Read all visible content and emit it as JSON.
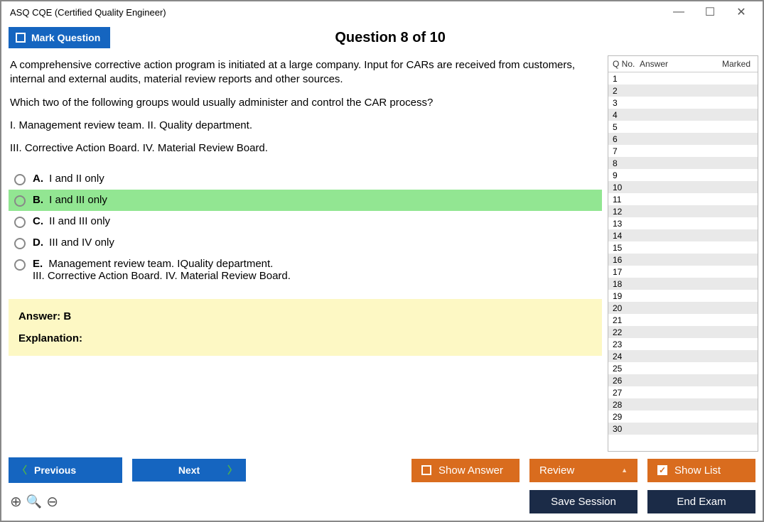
{
  "window": {
    "title": "ASQ CQE (Certified Quality Engineer)"
  },
  "header": {
    "mark_label": "Mark Question",
    "question_title": "Question 8 of 10"
  },
  "question": {
    "paragraphs": [
      "A comprehensive corrective action program is initiated at a large company. Input for CARs are received from customers, internal and external audits, material review reports and other sources.",
      "Which two of the following groups would usually administer and control the CAR process?",
      "I. Management review team. II. Quality department.",
      "III. Corrective Action Board. IV. Material Review Board."
    ]
  },
  "options": [
    {
      "letter": "A.",
      "text": "I and II only",
      "correct": false
    },
    {
      "letter": "B.",
      "text": "I and III only",
      "correct": true
    },
    {
      "letter": "C.",
      "text": "II and III only",
      "correct": false
    },
    {
      "letter": "D.",
      "text": "III and IV only",
      "correct": false
    },
    {
      "letter": "E.",
      "text": "Management review team. IQuality department.\nIII. Corrective Action Board. IV. Material Review Board.",
      "correct": false
    }
  ],
  "answer_panel": {
    "answer_line": "Answer: B",
    "explanation_label": "Explanation:"
  },
  "sidebar": {
    "headers": {
      "qno": "Q No.",
      "answer": "Answer",
      "marked": "Marked"
    },
    "count": 30
  },
  "footer": {
    "previous": "Previous",
    "next": "Next",
    "show_answer": "Show Answer",
    "review": "Review",
    "show_list": "Show List",
    "save_session": "Save Session",
    "end_exam": "End Exam"
  },
  "colors": {
    "blue": "#1565c0",
    "orange": "#d96c1e",
    "dark": "#1b2b47",
    "correct_bg": "#92e692",
    "explain_bg": "#fdf8c4",
    "row_alt": "#e9e9e9"
  }
}
